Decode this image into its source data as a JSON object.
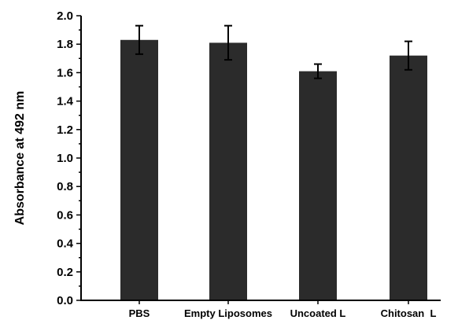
{
  "chart_data": {
    "type": "bar",
    "categories": [
      "PBS",
      "Empty Liposomes",
      "Uncoated L",
      "Chitosan  L"
    ],
    "values": [
      1.83,
      1.81,
      1.61,
      1.72
    ],
    "errors": [
      0.1,
      0.12,
      0.05,
      0.1
    ],
    "title": "",
    "xlabel": "",
    "ylabel": "Absorbance at 492 nm",
    "ylim": [
      0.0,
      2.0
    ],
    "yticks": [
      "0.0",
      "0.2",
      "0.4",
      "0.6",
      "0.8",
      "1.0",
      "1.2",
      "1.4",
      "1.6",
      "1.8",
      "2.0"
    ],
    "grid": false,
    "legend": "none",
    "bar_color": "#2b2b2b",
    "axis_color": "#000000"
  }
}
